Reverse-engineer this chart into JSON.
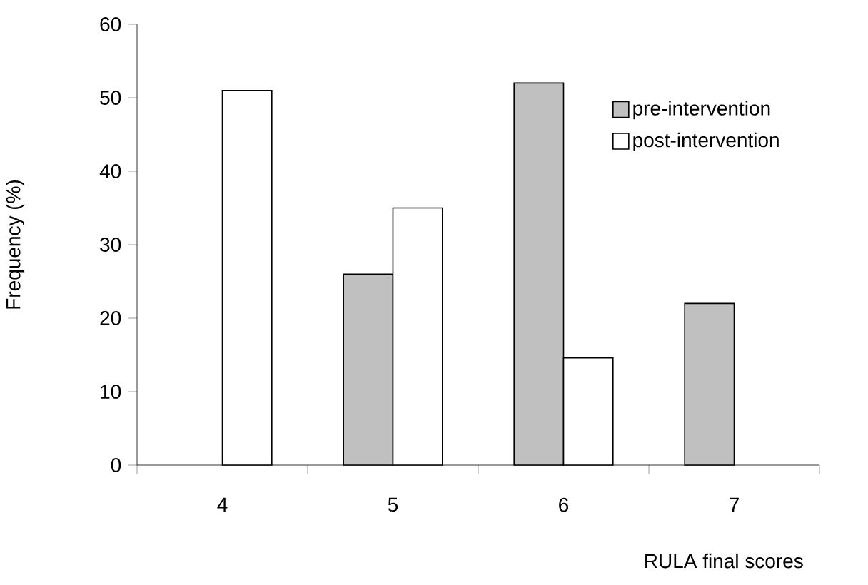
{
  "chart_data": {
    "type": "bar",
    "xlabel": "RULA final scores",
    "ylabel": "Frequency (%)",
    "categories": [
      "4",
      "5",
      "6",
      "7"
    ],
    "series": [
      {
        "name": "pre-intervention",
        "color": "#c0c0c0",
        "values": [
          null,
          26,
          52,
          22
        ]
      },
      {
        "name": "post-intervention",
        "color": "#ffffff",
        "values": [
          51,
          35,
          14.6,
          null
        ]
      }
    ],
    "ylim": [
      0,
      60
    ],
    "yticks": [
      0,
      10,
      20,
      30,
      40,
      50,
      60
    ],
    "legend": "top right"
  }
}
